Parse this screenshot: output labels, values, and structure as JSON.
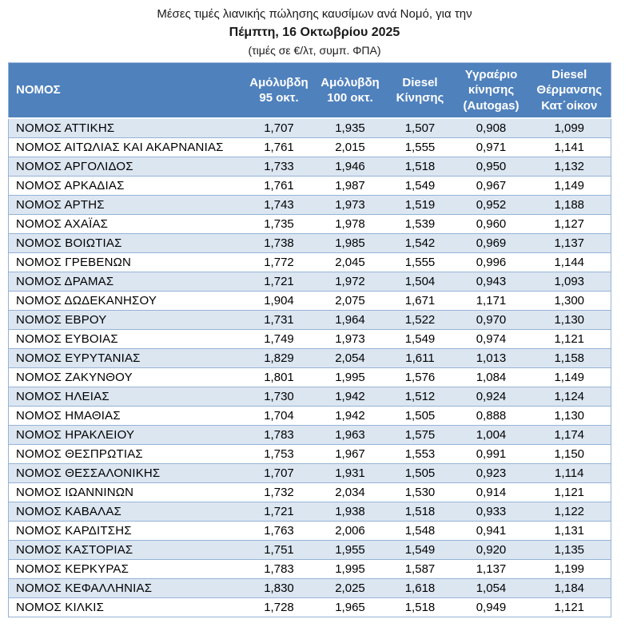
{
  "title": {
    "line1": "Μέσες τιμές λιανικής πώλησης καυσίμων ανά Νομό, για την",
    "line2": "Πέμπτη, 16 Οκτωβρίου 2025",
    "line3": "(τιμές σε €/λτ, συμπ. ΦΠΑ)"
  },
  "colors": {
    "header_bg": "#4f81bd",
    "header_text": "#ffffff",
    "row_alt_bg": "#dce6f1",
    "row_bg": "#ffffff",
    "border": "#95b3d7"
  },
  "table": {
    "header": {
      "nomos": "ΝΟΜΟΣ",
      "columns": [
        "Αμόλυβδη\n95 οκτ.",
        "Αμόλυβδη\n100 οκτ.",
        "Diesel\nΚίνησης",
        "Υγραέριο\nκίνησης\n(Autogas)",
        "Diesel\nΘέρμανσης\nΚατ΄οίκον"
      ]
    },
    "rows": [
      {
        "name": "ΝΟΜΟΣ ΑΤΤΙΚΗΣ",
        "values": [
          "1,707",
          "1,935",
          "1,507",
          "0,908",
          "1,099"
        ]
      },
      {
        "name": "ΝΟΜΟΣ ΑΙΤΩΛΙΑΣ ΚΑΙ ΑΚΑΡΝΑΝΙΑΣ",
        "values": [
          "1,761",
          "2,015",
          "1,555",
          "0,971",
          "1,141"
        ]
      },
      {
        "name": "ΝΟΜΟΣ ΑΡΓΟΛΙΔΟΣ",
        "values": [
          "1,733",
          "1,946",
          "1,518",
          "0,950",
          "1,132"
        ]
      },
      {
        "name": "ΝΟΜΟΣ ΑΡΚΑΔΙΑΣ",
        "values": [
          "1,761",
          "1,987",
          "1,549",
          "0,967",
          "1,149"
        ]
      },
      {
        "name": "ΝΟΜΟΣ ΑΡΤΗΣ",
        "values": [
          "1,743",
          "1,973",
          "1,519",
          "0,952",
          "1,188"
        ]
      },
      {
        "name": "ΝΟΜΟΣ ΑΧΑΪΑΣ",
        "values": [
          "1,735",
          "1,978",
          "1,539",
          "0,960",
          "1,127"
        ]
      },
      {
        "name": "ΝΟΜΟΣ ΒΟΙΩΤΙΑΣ",
        "values": [
          "1,738",
          "1,985",
          "1,542",
          "0,969",
          "1,137"
        ]
      },
      {
        "name": "ΝΟΜΟΣ ΓΡΕΒΕΝΩΝ",
        "values": [
          "1,772",
          "2,045",
          "1,555",
          "0,996",
          "1,144"
        ]
      },
      {
        "name": "ΝΟΜΟΣ ΔΡΑΜΑΣ",
        "values": [
          "1,721",
          "1,972",
          "1,504",
          "0,943",
          "1,093"
        ]
      },
      {
        "name": "ΝΟΜΟΣ ΔΩΔΕΚΑΝΗΣΟΥ",
        "values": [
          "1,904",
          "2,075",
          "1,671",
          "1,171",
          "1,300"
        ]
      },
      {
        "name": "ΝΟΜΟΣ ΕΒΡΟΥ",
        "values": [
          "1,731",
          "1,964",
          "1,522",
          "0,970",
          "1,130"
        ]
      },
      {
        "name": "ΝΟΜΟΣ ΕΥΒΟΙΑΣ",
        "values": [
          "1,749",
          "1,973",
          "1,549",
          "0,974",
          "1,121"
        ]
      },
      {
        "name": "ΝΟΜΟΣ ΕΥΡΥΤΑΝΙΑΣ",
        "values": [
          "1,829",
          "2,054",
          "1,611",
          "1,013",
          "1,158"
        ]
      },
      {
        "name": "ΝΟΜΟΣ ΖΑΚΥΝΘΟΥ",
        "values": [
          "1,801",
          "1,995",
          "1,576",
          "1,084",
          "1,149"
        ]
      },
      {
        "name": "ΝΟΜΟΣ ΗΛΕΙΑΣ",
        "values": [
          "1,730",
          "1,942",
          "1,512",
          "0,924",
          "1,124"
        ]
      },
      {
        "name": "ΝΟΜΟΣ ΗΜΑΘΙΑΣ",
        "values": [
          "1,704",
          "1,942",
          "1,505",
          "0,888",
          "1,130"
        ]
      },
      {
        "name": "ΝΟΜΟΣ ΗΡΑΚΛΕΙΟΥ",
        "values": [
          "1,783",
          "1,963",
          "1,575",
          "1,004",
          "1,174"
        ]
      },
      {
        "name": "ΝΟΜΟΣ ΘΕΣΠΡΩΤΙΑΣ",
        "values": [
          "1,753",
          "1,967",
          "1,553",
          "0,991",
          "1,150"
        ]
      },
      {
        "name": "ΝΟΜΟΣ ΘΕΣΣΑΛΟΝΙΚΗΣ",
        "values": [
          "1,707",
          "1,931",
          "1,505",
          "0,923",
          "1,114"
        ]
      },
      {
        "name": "ΝΟΜΟΣ ΙΩΑΝΝΙΝΩΝ",
        "values": [
          "1,732",
          "2,034",
          "1,530",
          "0,914",
          "1,121"
        ]
      },
      {
        "name": "ΝΟΜΟΣ ΚΑΒΑΛΑΣ",
        "values": [
          "1,721",
          "1,938",
          "1,518",
          "0,933",
          "1,122"
        ]
      },
      {
        "name": "ΝΟΜΟΣ ΚΑΡΔΙΤΣΗΣ",
        "values": [
          "1,763",
          "2,006",
          "1,548",
          "0,941",
          "1,131"
        ]
      },
      {
        "name": "ΝΟΜΟΣ ΚΑΣΤΟΡΙΑΣ",
        "values": [
          "1,751",
          "1,955",
          "1,549",
          "0,920",
          "1,135"
        ]
      },
      {
        "name": "ΝΟΜΟΣ ΚΕΡΚΥΡΑΣ",
        "values": [
          "1,783",
          "1,995",
          "1,587",
          "1,137",
          "1,199"
        ]
      },
      {
        "name": "ΝΟΜΟΣ ΚΕΦΑΛΛΗΝΙΑΣ",
        "values": [
          "1,830",
          "2,025",
          "1,618",
          "1,054",
          "1,184"
        ]
      },
      {
        "name": "ΝΟΜΟΣ ΚΙΛΚΙΣ",
        "values": [
          "1,728",
          "1,965",
          "1,518",
          "0,949",
          "1,121"
        ]
      }
    ]
  }
}
